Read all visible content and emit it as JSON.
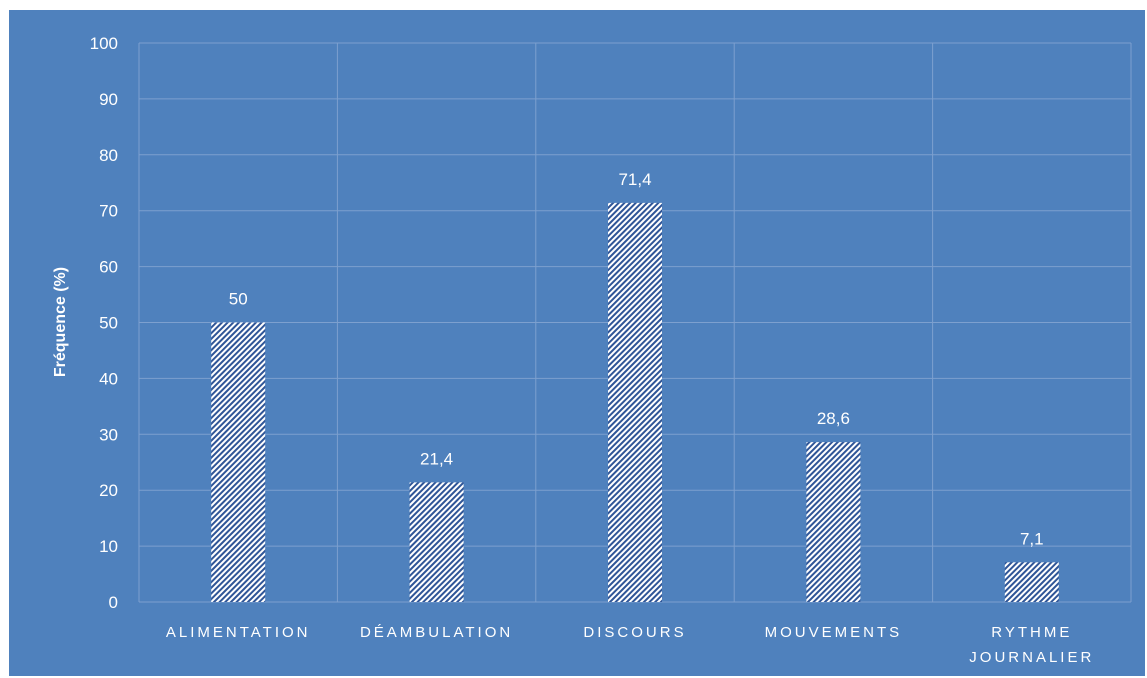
{
  "colors": {
    "background": "#4f81bd",
    "gridline": "#7da0cf",
    "bar_pattern_fg": "#2f5597",
    "bar_pattern_bg": "#ffffff",
    "text": "#ffffff"
  },
  "chart_data": {
    "type": "bar",
    "title": "",
    "xlabel": "",
    "ylabel": "Fréquence (%)",
    "categories": [
      "ALIMENTATION",
      "DÉAMBULATION",
      "DISCOURS",
      "MOUVEMENTS",
      "RYTHME JOURNALIER"
    ],
    "category_lines": [
      [
        "ALIMENTATION"
      ],
      [
        "DÉAMBULATION"
      ],
      [
        "DISCOURS"
      ],
      [
        "MOUVEMENTS"
      ],
      [
        "RYTHME",
        "JOURNALIER"
      ]
    ],
    "values": [
      50,
      21.4,
      71.4,
      28.6,
      7.1
    ],
    "data_labels": [
      "50",
      "21,4",
      "71,4",
      "28,6",
      "7,1"
    ],
    "ylim": [
      0,
      100
    ],
    "yticks": [
      0,
      10,
      20,
      30,
      40,
      50,
      60,
      70,
      80,
      90,
      100
    ],
    "grid": true,
    "bar_fill": "diagonal-hatch"
  }
}
